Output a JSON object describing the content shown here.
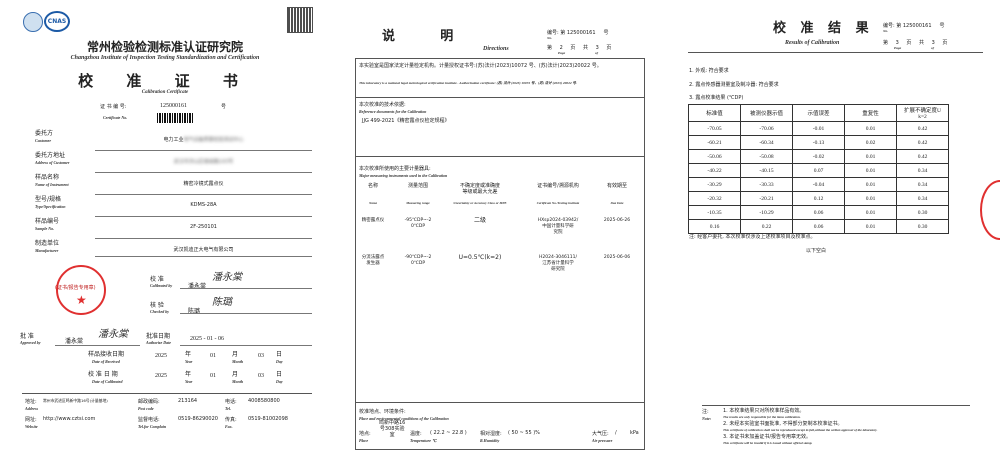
{
  "cover": {
    "logos": [
      "ilac-mra-logo",
      "cnas-logo"
    ],
    "institute_cn": "常州检验检测标准认证研究院",
    "institute_en": "Changzhou Institute of Inspection Testing Standardization and Certification",
    "title_cn": "校 准 证 书",
    "title_en": "Calibration Certificate",
    "cert_no_label": "证 书 编 号:",
    "cert_no_en": "Certificate No.",
    "cert_no": "125000161",
    "cert_no_suffix": "号",
    "fields": [
      {
        "label": "委托方",
        "label_en": "Customer",
        "value": "电力工业",
        "value_blurred": "电气设备质量检验测试中心"
      },
      {
        "label": "委托方地址",
        "label_en": "Address of Customer",
        "value": "",
        "value_blurred": "武汉市洪山区珞瑜路143号"
      },
      {
        "label": "样品名称",
        "label_en": "Name of Instrument",
        "value": "精密冷镜式露点仪"
      },
      {
        "label": "型号/规格",
        "label_en": "Type/Specification",
        "value": "KDMS-28A"
      },
      {
        "label": "样品编号",
        "label_en": "Sample No.",
        "value": "2F-250101"
      },
      {
        "label": "制造单位",
        "label_en": "Manufacturer",
        "value": "武汉凯迪正大电气有限公司"
      }
    ],
    "stamp_text": "(证书/报告专用章)",
    "stamp_en": "Stamp",
    "calibrated_label": "校 准",
    "calibrated_en": "Calibrated by",
    "calibrated_name": "潘永棠",
    "calibrated_sig": "潘永棠",
    "checked_label": "核 验",
    "checked_en": "Checked by",
    "checked_name": "陈璐",
    "checked_sig": "陈璐",
    "approved_label": "批 准",
    "approved_en": "Approved by",
    "approved_name": "潘永棠",
    "approved_sig": "潘永棠",
    "auth_date_label": "批准日期",
    "auth_date_en": "Authorize Date",
    "auth_date": "2025 - 01 - 06",
    "received_label": "样品接收日期",
    "received_en": "Date of Received",
    "calib_date_label": "校 准 日 期",
    "calib_date_en": "Date of Calibrated",
    "received": {
      "year": "2025",
      "month": "01",
      "day": "03"
    },
    "calib_date": {
      "year": "2025",
      "month": "01",
      "day": "03"
    },
    "year_cn": "年",
    "month_cn": "月",
    "day_cn": "日",
    "year_en": "Year",
    "month_en": "Month",
    "day_en": "Day",
    "footer": {
      "address_label": "地址:",
      "address_en": "Address",
      "address": "常州市武进区鸣新中路16号(计量基地)",
      "postcode_label": "邮政编码:",
      "postcode_en": "Post code",
      "postcode": "213164",
      "tel_label": "电话:",
      "tel_en": "Tel.",
      "tel": "4008580800",
      "web_label": "网址:",
      "web_en": "Website",
      "web": "http://www.cztsi.com",
      "complain_label": "监督电话:",
      "complain_en": "Tel.for Complain",
      "complain": "0519-86290020",
      "fax_label": "传真:",
      "fax_en": "Fax.",
      "fax": "0519-81002098"
    }
  },
  "directions": {
    "title_cn": "说          明",
    "title_en": "Directions",
    "no_label": "编号: 第",
    "no_en": "No.",
    "cert_no": "125000161",
    "no_suffix": "号",
    "page_label": "第",
    "page": "2",
    "page_en": "Page",
    "of_label": "页 共",
    "total": "3",
    "of_en": "of",
    "page_suffix": "页",
    "statement": "本实验室是国家法定计量检定机构。计量授权证书号:(苏)法计(2023)10072 号、(苏)法计(2023)20022 号。",
    "statement_en": "This laboratory is a national legal metrological verification institute . Authorization certificate: (苏) 法计 (2023) 10072 号、(苏) 法计 (2023) 20022 号.",
    "basis_label": "本次校准的技术依据:",
    "basis_en": "Reference documents for the Calibration",
    "basis": "JJG 499-2021《精密露点仪检定规程》",
    "instr_label": "本次校准所使用的主要计量器具:",
    "instr_en": "Major measuring instruments used in the Calibration",
    "headers": [
      {
        "cn": "名称",
        "en": "Name"
      },
      {
        "cn": "测量范围",
        "en": "Measuring range"
      },
      {
        "cn": "不确定度或准确度\n等级或最大允差",
        "en": "Uncertainty or Accuracy Class or MPE"
      },
      {
        "cn": "证书编号/溯源机构",
        "en": "Certificate No./Testing institute"
      },
      {
        "cn": "有效期至",
        "en": "Due Date"
      }
    ],
    "rows": [
      {
        "name": "精密露点仪",
        "range": "-95℃DP~-2\n0℃DP",
        "accuracy": "二级",
        "cert": "HXsp2024-03942/\n中国计量科学研\n究院",
        "due": "2025-06-26"
      },
      {
        "name": "分流法露点\n发生器",
        "range": "-90℃DP~-2\n0℃DP",
        "accuracy": "U=0.5℃(k=2)",
        "cert": "H2024-3046111/\n江苏省计量科学\n研究院",
        "due": "2025-06-06"
      }
    ],
    "env_label": "校准地点、环境条件:",
    "env_en": "Place and environmental conditions of the Calibration",
    "place_label": "地点:",
    "place_en": "Place",
    "place": "鸣新中路16\n号308实验\n室",
    "temp_label": "温度:",
    "temp_en": "Temperature ℃",
    "temp": "( 22.2 ~ 22.8 )",
    "hum_label": "相对湿度:",
    "hum_en": "R.Humidity",
    "hum": "( 50 ~ 55 )%",
    "press_label": "大气压:",
    "press_en": "Air pressure",
    "press": "/",
    "press_unit": "kPa"
  },
  "results": {
    "title_cn": "校 准 结 果",
    "title_en": "Results of Calibration",
    "no_label": "编号: 第",
    "no_en": "No.",
    "cert_no": "125000161",
    "no_suffix": "号",
    "page_label": "第",
    "page": "3",
    "page_en": "Page",
    "of_label": "页 共",
    "total": "3",
    "of_en": "of",
    "page_suffix": "页",
    "items": [
      "1. 外观: 符合要求",
      "2. 露点传感器测量室及制冷器: 符合要求",
      "3. 露点校准结果 (℃DP)"
    ],
    "headers": [
      "标准值",
      "被测仪器示值",
      "示值误差",
      "重复性",
      "扩展不确定度U\nk=2"
    ],
    "rows": [
      [
        "-70.05",
        "-70.06",
        "-0.01",
        "0.01",
        "0.42"
      ],
      [
        "-60.21",
        "-60.34",
        "-0.13",
        "0.02",
        "0.42"
      ],
      [
        "-50.06",
        "-50.08",
        "-0.02",
        "0.01",
        "0.42"
      ],
      [
        "-40.22",
        "-40.15",
        "0.07",
        "0.01",
        "0.34"
      ],
      [
        "-30.29",
        "-30.33",
        "-0.04",
        "0.01",
        "0.34"
      ],
      [
        "-20.32",
        "-20.21",
        "0.12",
        "0.01",
        "0.34"
      ],
      [
        "-10.35",
        "-10.29",
        "0.06",
        "0.01",
        "0.30"
      ],
      [
        "0.16",
        "0.22",
        "0.06",
        "0.01",
        "0.30"
      ]
    ],
    "note": "注: 经客户委托, 本次校准仅涉及上述校准项目及校准点。",
    "blank": "以下空白",
    "notes_label": "注:",
    "notes_en": "Note:",
    "notes": [
      {
        "cn": "1. 本校准结果只对所校准样品有效。",
        "en": "The results are only responsible for the items calibration."
      },
      {
        "cn": "2. 未经本实验室书面批准, 不得部分复制本校准证书。",
        "en": "This certificate of calibration shall not be reproduced except in full,without the written approval of the laboratory."
      },
      {
        "cn": "3. 本证书未加盖证书/报告专用章无效。",
        "en": "This certificate will be invalid if it is issued without official stamp."
      }
    ]
  },
  "colors": {
    "stamp": "#e03030",
    "text": "#222222",
    "rule": "#777777"
  }
}
